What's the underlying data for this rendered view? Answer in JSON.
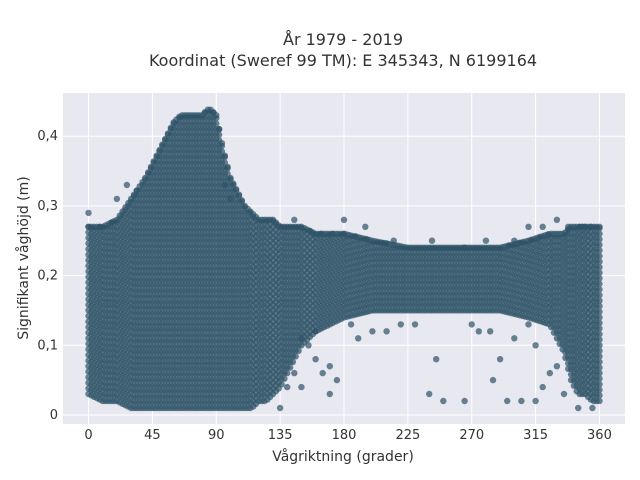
{
  "chart_data": {
    "type": "scatter",
    "title_line1": "År 1979 - 2019",
    "title_line2": "Koordinat (Sweref 99 TM): E 345343, N 6199164",
    "xlabel": "Vågriktning (grader)",
    "ylabel": "Signifikant våghöjd (m)",
    "xlim": [
      -18,
      378
    ],
    "ylim": [
      -0.013,
      0.462
    ],
    "xticks": [
      0,
      45,
      90,
      135,
      180,
      225,
      270,
      315,
      360
    ],
    "xtick_labels": [
      "0",
      "45",
      "90",
      "135",
      "180",
      "225",
      "270",
      "315",
      "360"
    ],
    "yticks": [
      0,
      0.1,
      0.2,
      0.3,
      0.4
    ],
    "ytick_labels": [
      "0",
      "0,1",
      "0,2",
      "0,3",
      "0,4"
    ],
    "grid": true,
    "marker_color": "#2e5266",
    "marker_opacity": 0.7,
    "background_color": "#e8e8f0",
    "point_density": "dense filled region",
    "density_bands": [
      {
        "x": 0,
        "y_min": 0.03,
        "y_max": 0.27
      },
      {
        "x": 10,
        "y_min": 0.02,
        "y_max": 0.27
      },
      {
        "x": 20,
        "y_min": 0.02,
        "y_max": 0.28
      },
      {
        "x": 30,
        "y_min": 0.01,
        "y_max": 0.31
      },
      {
        "x": 40,
        "y_min": 0.01,
        "y_max": 0.34
      },
      {
        "x": 50,
        "y_min": 0.01,
        "y_max": 0.38
      },
      {
        "x": 55,
        "y_min": 0.01,
        "y_max": 0.4
      },
      {
        "x": 60,
        "y_min": 0.01,
        "y_max": 0.42
      },
      {
        "x": 65,
        "y_min": 0.01,
        "y_max": 0.43
      },
      {
        "x": 70,
        "y_min": 0.01,
        "y_max": 0.43
      },
      {
        "x": 75,
        "y_min": 0.01,
        "y_max": 0.43
      },
      {
        "x": 80,
        "y_min": 0.01,
        "y_max": 0.43
      },
      {
        "x": 85,
        "y_min": 0.01,
        "y_max": 0.44
      },
      {
        "x": 90,
        "y_min": 0.01,
        "y_max": 0.43
      },
      {
        "x": 95,
        "y_min": 0.01,
        "y_max": 0.38
      },
      {
        "x": 100,
        "y_min": 0.01,
        "y_max": 0.34
      },
      {
        "x": 105,
        "y_min": 0.01,
        "y_max": 0.32
      },
      {
        "x": 110,
        "y_min": 0.01,
        "y_max": 0.3
      },
      {
        "x": 115,
        "y_min": 0.01,
        "y_max": 0.29
      },
      {
        "x": 120,
        "y_min": 0.02,
        "y_max": 0.28
      },
      {
        "x": 125,
        "y_min": 0.02,
        "y_max": 0.28
      },
      {
        "x": 130,
        "y_min": 0.03,
        "y_max": 0.28
      },
      {
        "x": 135,
        "y_min": 0.04,
        "y_max": 0.27
      },
      {
        "x": 140,
        "y_min": 0.06,
        "y_max": 0.27
      },
      {
        "x": 150,
        "y_min": 0.1,
        "y_max": 0.27
      },
      {
        "x": 160,
        "y_min": 0.12,
        "y_max": 0.26
      },
      {
        "x": 180,
        "y_min": 0.14,
        "y_max": 0.26
      },
      {
        "x": 200,
        "y_min": 0.15,
        "y_max": 0.25
      },
      {
        "x": 225,
        "y_min": 0.15,
        "y_max": 0.24
      },
      {
        "x": 250,
        "y_min": 0.15,
        "y_max": 0.24
      },
      {
        "x": 270,
        "y_min": 0.15,
        "y_max": 0.24
      },
      {
        "x": 290,
        "y_min": 0.15,
        "y_max": 0.24
      },
      {
        "x": 310,
        "y_min": 0.14,
        "y_max": 0.25
      },
      {
        "x": 325,
        "y_min": 0.13,
        "y_max": 0.26
      },
      {
        "x": 335,
        "y_min": 0.09,
        "y_max": 0.26
      },
      {
        "x": 340,
        "y_min": 0.05,
        "y_max": 0.27
      },
      {
        "x": 345,
        "y_min": 0.03,
        "y_max": 0.27
      },
      {
        "x": 350,
        "y_min": 0.03,
        "y_max": 0.27
      },
      {
        "x": 355,
        "y_min": 0.02,
        "y_max": 0.27
      },
      {
        "x": 360,
        "y_min": 0.02,
        "y_max": 0.27
      }
    ],
    "outliers": [
      {
        "x": 0,
        "y": 0.29
      },
      {
        "x": 20,
        "y": 0.31
      },
      {
        "x": 27,
        "y": 0.33
      },
      {
        "x": 96,
        "y": 0.33
      },
      {
        "x": 100,
        "y": 0.31
      },
      {
        "x": 145,
        "y": 0.28
      },
      {
        "x": 180,
        "y": 0.28
      },
      {
        "x": 195,
        "y": 0.27
      },
      {
        "x": 215,
        "y": 0.25
      },
      {
        "x": 242,
        "y": 0.25
      },
      {
        "x": 265,
        "y": 0.24
      },
      {
        "x": 280,
        "y": 0.25
      },
      {
        "x": 300,
        "y": 0.25
      },
      {
        "x": 310,
        "y": 0.27
      },
      {
        "x": 320,
        "y": 0.27
      },
      {
        "x": 330,
        "y": 0.28
      },
      {
        "x": 338,
        "y": 0.27
      },
      {
        "x": 150,
        "y": 0.11
      },
      {
        "x": 155,
        "y": 0.1
      },
      {
        "x": 160,
        "y": 0.08
      },
      {
        "x": 165,
        "y": 0.06
      },
      {
        "x": 150,
        "y": 0.04
      },
      {
        "x": 170,
        "y": 0.03
      },
      {
        "x": 175,
        "y": 0.05
      },
      {
        "x": 190,
        "y": 0.11
      },
      {
        "x": 200,
        "y": 0.12
      },
      {
        "x": 210,
        "y": 0.12
      },
      {
        "x": 220,
        "y": 0.13
      },
      {
        "x": 245,
        "y": 0.08
      },
      {
        "x": 250,
        "y": 0.02
      },
      {
        "x": 265,
        "y": 0.02
      },
      {
        "x": 275,
        "y": 0.12
      },
      {
        "x": 283,
        "y": 0.12
      },
      {
        "x": 285,
        "y": 0.05
      },
      {
        "x": 290,
        "y": 0.08
      },
      {
        "x": 295,
        "y": 0.02
      },
      {
        "x": 305,
        "y": 0.02
      },
      {
        "x": 300,
        "y": 0.11
      },
      {
        "x": 315,
        "y": 0.02
      },
      {
        "x": 320,
        "y": 0.04
      },
      {
        "x": 325,
        "y": 0.06
      },
      {
        "x": 330,
        "y": 0.07
      },
      {
        "x": 335,
        "y": 0.03
      },
      {
        "x": 315,
        "y": 0.1
      },
      {
        "x": 310,
        "y": 0.13
      },
      {
        "x": 240,
        "y": 0.03
      },
      {
        "x": 230,
        "y": 0.13
      },
      {
        "x": 270,
        "y": 0.13
      },
      {
        "x": 355,
        "y": 0.01
      },
      {
        "x": 345,
        "y": 0.01
      },
      {
        "x": 140,
        "y": 0.04
      },
      {
        "x": 145,
        "y": 0.06
      },
      {
        "x": 135,
        "y": 0.01
      },
      {
        "x": 170,
        "y": 0.07
      },
      {
        "x": 185,
        "y": 0.13
      },
      {
        "x": 160,
        "y": 0.12
      }
    ]
  }
}
